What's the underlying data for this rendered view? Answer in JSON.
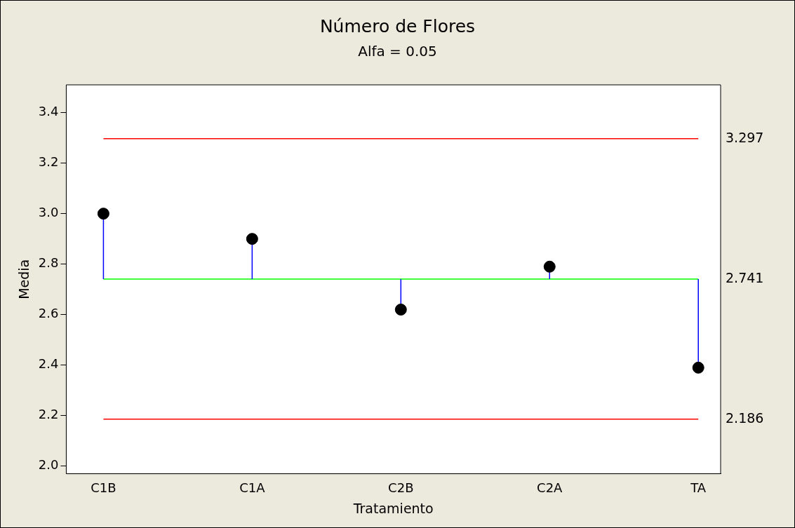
{
  "chart_data": {
    "type": "scatter",
    "title": "Número de Flores",
    "subtitle": "Alfa = 0.05",
    "xlabel": "Tratamiento",
    "ylabel": "Media",
    "categories": [
      "C1B",
      "C1A",
      "C2B",
      "C2A",
      "TA"
    ],
    "series": [
      {
        "color": "#000000",
        "values": [
          3.0,
          2.9,
          2.62,
          2.79,
          2.39
        ],
        "errors": [
          [
            2.741,
            3.0
          ],
          [
            2.741,
            2.9
          ],
          [
            2.62,
            2.741
          ],
          [
            2.741,
            2.79
          ],
          [
            2.39,
            2.741
          ]
        ]
      }
    ],
    "ylim": [
      1.97,
      3.51
    ],
    "yticks": [
      {
        "value": 2.0,
        "label": "2.0"
      },
      {
        "value": 2.2,
        "label": "2.2"
      },
      {
        "value": 2.4,
        "label": "2.4"
      },
      {
        "value": 2.6,
        "label": "2.6"
      },
      {
        "value": 2.8,
        "label": "2.8"
      },
      {
        "value": 3.0,
        "label": "3.0"
      },
      {
        "value": 3.2,
        "label": "3.2"
      },
      {
        "value": 3.4,
        "label": "3.4"
      }
    ],
    "ref_lines": [
      {
        "axis": "y",
        "value": 3.297,
        "label": "3.297",
        "color": "#ff0000"
      },
      {
        "axis": "y",
        "value": 2.741,
        "label": "2.741",
        "color": "#00ff00"
      },
      {
        "axis": "y",
        "value": 2.186,
        "label": "2.186",
        "color": "#ff0000"
      }
    ],
    "marker": "circle",
    "grid": false,
    "legend": false
  }
}
